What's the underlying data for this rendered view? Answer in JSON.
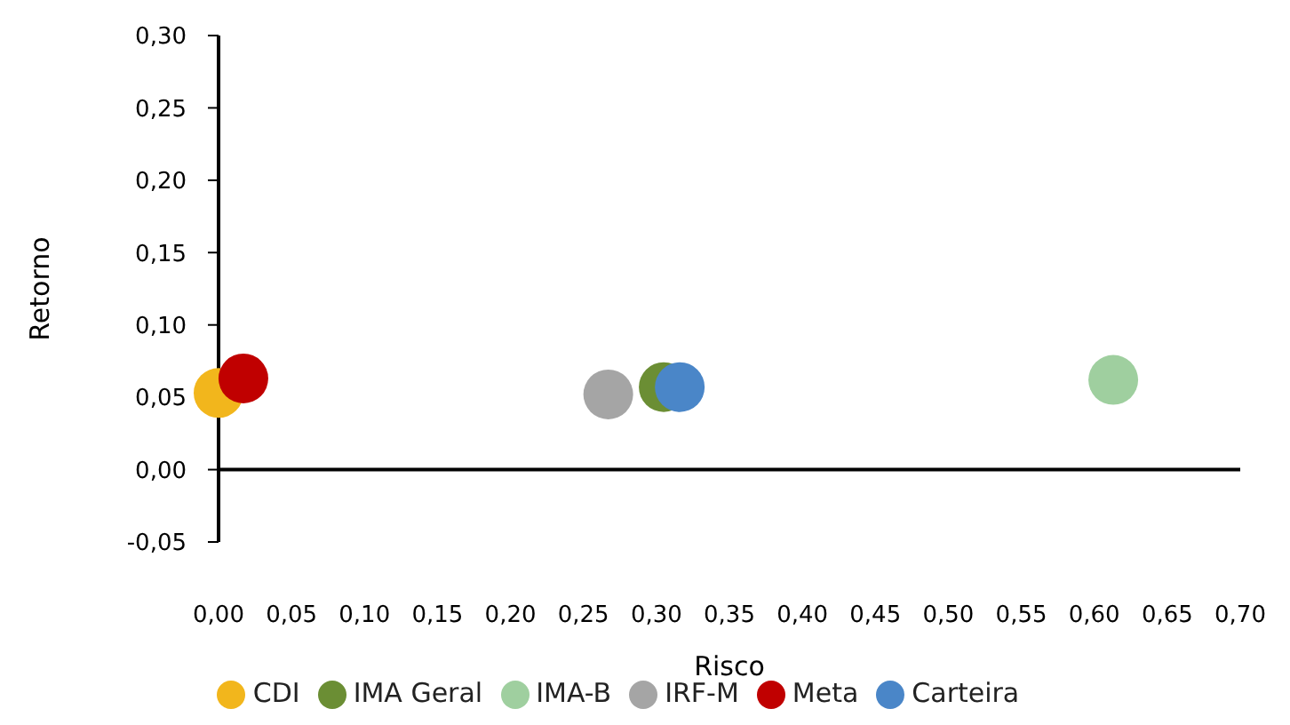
{
  "chart_data": {
    "type": "scatter",
    "xlabel": "Risco",
    "ylabel": "Retorno",
    "xlim": [
      0,
      0.7
    ],
    "xticks": [
      {
        "value": 0,
        "label": "0,00"
      },
      {
        "value": 0.05,
        "label": "0,05"
      },
      {
        "value": 0.1,
        "label": "0,10"
      },
      {
        "value": 0.15,
        "label": "0,15"
      },
      {
        "value": 0.2,
        "label": "0,20"
      },
      {
        "value": 0.25,
        "label": "0,25"
      },
      {
        "value": 0.3,
        "label": "0,30"
      },
      {
        "value": 0.35,
        "label": "0,35"
      },
      {
        "value": 0.4,
        "label": "0,40"
      },
      {
        "value": 0.45,
        "label": "0,45"
      },
      {
        "value": 0.5,
        "label": "0,50"
      },
      {
        "value": 0.55,
        "label": "0,55"
      },
      {
        "value": 0.6,
        "label": "0,60"
      },
      {
        "value": 0.65,
        "label": "0,65"
      },
      {
        "value": 0.7,
        "label": "0,70"
      }
    ],
    "ylim": [
      -0.05,
      0.3
    ],
    "yticks": [
      {
        "value": -0.05,
        "label": "-0,05"
      },
      {
        "value": 0,
        "label": "0,00"
      },
      {
        "value": 0.05,
        "label": "0,05"
      },
      {
        "value": 0.1,
        "label": "0,10"
      },
      {
        "value": 0.15,
        "label": "0,15"
      },
      {
        "value": 0.2,
        "label": "0,20"
      },
      {
        "value": 0.25,
        "label": "0,25"
      },
      {
        "value": 0.3,
        "label": "0,30"
      }
    ],
    "ref_lines": [
      {
        "axis": "y",
        "value": 0,
        "color": "#000000"
      }
    ],
    "marker": "circle",
    "legend": "bottom",
    "grid": false,
    "series": [
      {
        "name": "Carteira",
        "color": "#4a86c8",
        "x": [
          0.316
        ],
        "values": [
          0.057
        ]
      },
      {
        "name": "CDI",
        "color": "#f2b61c",
        "x": [
          0.0
        ],
        "values": [
          0.053
        ]
      },
      {
        "name": "IMA Geral",
        "color": "#6b8e34",
        "x": [
          0.305
        ],
        "values": [
          0.057
        ]
      },
      {
        "name": "IMA-B",
        "color": "#9fcf9f",
        "x": [
          0.613
        ],
        "values": [
          0.062
        ]
      },
      {
        "name": "IRF-M",
        "color": "#a5a5a5",
        "x": [
          0.267
        ],
        "values": [
          0.052
        ]
      },
      {
        "name": "Meta",
        "color": "#c00000",
        "x": [
          0.017
        ],
        "values": [
          0.063
        ]
      }
    ]
  }
}
